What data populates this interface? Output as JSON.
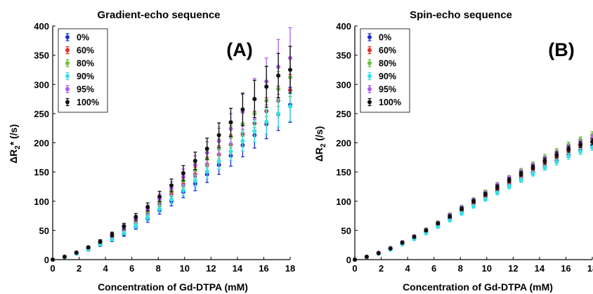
{
  "chart_data": [
    {
      "type": "scatter",
      "title": "Gradient-echo sequence",
      "panel_label": "(A)",
      "xlabel": "Concentration of Gd-DTPA (mM)",
      "ylabel_main": "ΔR",
      "ylabel_sub": "2",
      "ylabel_tail": "* (/s)",
      "xlim": [
        0,
        18
      ],
      "ylim": [
        0,
        400
      ],
      "xticks": [
        0,
        2,
        4,
        6,
        8,
        10,
        12,
        14,
        16,
        18
      ],
      "yticks": [
        0,
        50,
        100,
        150,
        200,
        250,
        300,
        350,
        400
      ],
      "grid": false,
      "legend": "top-left",
      "x": [
        0,
        0.9,
        1.8,
        2.7,
        3.6,
        4.5,
        5.4,
        6.3,
        7.2,
        8.1,
        9.0,
        9.9,
        10.8,
        11.7,
        12.6,
        13.5,
        14.4,
        15.3,
        16.2,
        17.1,
        18.0
      ],
      "series": [
        {
          "name": "0%",
          "color": "#1f2fd6",
          "values": [
            0,
            4,
            10,
            17,
            25,
            34,
            44,
            56,
            70,
            85,
            100,
            116,
            130,
            146,
            162,
            178,
            196,
            213,
            232,
            249,
            265
          ],
          "errors": [
            0,
            1,
            1,
            2,
            2,
            3,
            4,
            4,
            6,
            7,
            8,
            10,
            12,
            14,
            16,
            18,
            20,
            22,
            25,
            28,
            30
          ]
        },
        {
          "name": "60%",
          "color": "#e8302a",
          "values": [
            0,
            5,
            11,
            19,
            28,
            38,
            50,
            63,
            79,
            95,
            112,
            129,
            146,
            163,
            180,
            197,
            215,
            233,
            254,
            272,
            290
          ],
          "errors": [
            0,
            1,
            1,
            2,
            2,
            3,
            4,
            5,
            6,
            7,
            9,
            10,
            12,
            13,
            15,
            17,
            19,
            21,
            23,
            25,
            27
          ]
        },
        {
          "name": "80%",
          "color": "#67c23a",
          "values": [
            0,
            5,
            11,
            20,
            29,
            40,
            52,
            66,
            82,
            99,
            117,
            135,
            153,
            172,
            190,
            210,
            232,
            250,
            272,
            292,
            312
          ],
          "errors": [
            0,
            1,
            1,
            2,
            3,
            3,
            4,
            5,
            7,
            8,
            9,
            11,
            13,
            15,
            17,
            19,
            21,
            24,
            27,
            30,
            33
          ]
        },
        {
          "name": "90%",
          "color": "#37e0e6",
          "values": [
            0,
            4,
            10,
            17,
            26,
            35,
            46,
            58,
            72,
            87,
            103,
            119,
            135,
            151,
            168,
            185,
            203,
            220,
            236,
            250,
            262
          ],
          "errors": [
            0,
            1,
            1,
            2,
            2,
            3,
            3,
            4,
            5,
            6,
            7,
            9,
            10,
            12,
            13,
            15,
            17,
            19,
            21,
            23,
            25
          ]
        },
        {
          "name": "95%",
          "color": "#b15ced",
          "values": [
            0,
            5,
            12,
            21,
            31,
            42,
            55,
            70,
            86,
            104,
            122,
            142,
            162,
            183,
            203,
            224,
            253,
            275,
            305,
            330,
            345
          ],
          "errors": [
            0,
            1,
            2,
            2,
            3,
            4,
            5,
            6,
            7,
            9,
            11,
            13,
            16,
            19,
            22,
            26,
            30,
            35,
            40,
            47,
            52
          ]
        },
        {
          "name": "100%",
          "color": "#111111",
          "values": [
            0,
            5,
            12,
            21,
            31,
            43,
            57,
            73,
            90,
            108,
            127,
            148,
            169,
            190,
            213,
            235,
            257,
            275,
            296,
            315,
            325
          ],
          "errors": [
            0,
            1,
            2,
            2,
            3,
            4,
            5,
            6,
            7,
            9,
            11,
            13,
            15,
            18,
            21,
            24,
            28,
            32,
            35,
            38,
            40
          ]
        }
      ]
    },
    {
      "type": "scatter",
      "title": "Spin-echo sequence",
      "panel_label": "(B)",
      "xlabel": "Concentration of Gd-DTPA (mM)",
      "ylabel_main": "ΔR",
      "ylabel_sub": "2",
      "ylabel_tail": " (/s)",
      "xlim": [
        0,
        18
      ],
      "ylim": [
        0,
        400
      ],
      "xticks": [
        0,
        2,
        4,
        6,
        8,
        10,
        12,
        14,
        16,
        18
      ],
      "yticks": [
        0,
        50,
        100,
        150,
        200,
        250,
        300,
        350,
        400
      ],
      "grid": false,
      "legend": "top-left",
      "x": [
        0,
        0.9,
        1.8,
        2.7,
        3.6,
        4.5,
        5.4,
        6.3,
        7.2,
        8.1,
        9.0,
        9.9,
        10.8,
        11.7,
        12.6,
        13.5,
        14.4,
        15.3,
        16.2,
        17.1,
        18.0
      ],
      "series": [
        {
          "name": "0%",
          "color": "#1f2fd6",
          "values": [
            0,
            4,
            10,
            18,
            27,
            36,
            47,
            58,
            70,
            82,
            95,
            107,
            118,
            129,
            140,
            150,
            160,
            170,
            180,
            188,
            195
          ],
          "errors": [
            0,
            1,
            1,
            1,
            1,
            2,
            2,
            2,
            2,
            3,
            3,
            3,
            3,
            4,
            4,
            4,
            4,
            5,
            5,
            5,
            5
          ]
        },
        {
          "name": "60%",
          "color": "#e8302a",
          "values": [
            0,
            4,
            11,
            19,
            28,
            38,
            49,
            60,
            73,
            85,
            98,
            110,
            122,
            133,
            144,
            155,
            166,
            176,
            186,
            194,
            202
          ],
          "errors": [
            0,
            1,
            1,
            1,
            1,
            2,
            2,
            2,
            2,
            3,
            3,
            3,
            3,
            4,
            4,
            4,
            4,
            5,
            5,
            5,
            5
          ]
        },
        {
          "name": "80%",
          "color": "#67c23a",
          "values": [
            0,
            5,
            12,
            20,
            30,
            40,
            52,
            64,
            77,
            90,
            103,
            116,
            128,
            140,
            152,
            163,
            175,
            185,
            196,
            205,
            213
          ],
          "errors": [
            0,
            1,
            1,
            1,
            2,
            2,
            2,
            2,
            3,
            3,
            3,
            3,
            4,
            4,
            4,
            4,
            5,
            5,
            5,
            5,
            6
          ]
        },
        {
          "name": "90%",
          "color": "#37e0e6",
          "values": [
            0,
            4,
            10,
            17,
            26,
            35,
            45,
            56,
            67,
            79,
            91,
            103,
            114,
            125,
            136,
            147,
            157,
            167,
            177,
            185,
            192
          ],
          "errors": [
            0,
            1,
            1,
            1,
            1,
            2,
            2,
            2,
            2,
            3,
            3,
            3,
            3,
            4,
            4,
            4,
            4,
            5,
            5,
            5,
            5
          ]
        },
        {
          "name": "95%",
          "color": "#b15ced",
          "values": [
            0,
            5,
            12,
            20,
            30,
            40,
            51,
            63,
            76,
            89,
            102,
            114,
            127,
            139,
            150,
            161,
            172,
            182,
            192,
            200,
            208
          ],
          "errors": [
            0,
            1,
            1,
            1,
            2,
            2,
            2,
            2,
            3,
            3,
            3,
            3,
            4,
            4,
            4,
            4,
            5,
            5,
            5,
            5,
            6
          ]
        },
        {
          "name": "100%",
          "color": "#111111",
          "values": [
            0,
            5,
            11,
            19,
            29,
            39,
            50,
            62,
            74,
            87,
            100,
            112,
            124,
            136,
            147,
            158,
            169,
            179,
            189,
            197,
            202
          ],
          "errors": [
            0,
            1,
            1,
            1,
            2,
            2,
            2,
            2,
            3,
            3,
            3,
            3,
            4,
            4,
            4,
            4,
            5,
            5,
            5,
            5,
            5
          ]
        }
      ]
    }
  ]
}
